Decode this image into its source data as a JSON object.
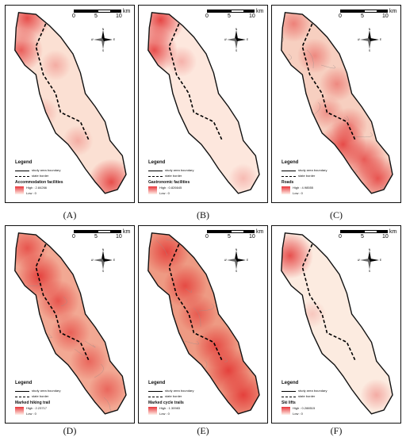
{
  "scale": {
    "labels": [
      "0",
      "5",
      "10"
    ],
    "unit": "km"
  },
  "compass": {
    "n": "N",
    "s": "S",
    "e": "E",
    "w": "W"
  },
  "legend": {
    "title": "Legend",
    "boundary": "study area boundary",
    "border": "state border",
    "low": "Low : 0"
  },
  "colors": {
    "fill_base": "#fbe3d8",
    "hot": "#e22b2b",
    "road": "#9a8f8c",
    "outline": "#111111"
  },
  "panels": [
    {
      "caption": "(A)",
      "layer_title": "Accommodation facilities",
      "high": "High : 2.84266",
      "hotspots": [
        [
          0.15,
          0.05,
          0.85
        ],
        [
          0.1,
          0.22,
          0.75
        ],
        [
          0.38,
          0.3,
          0.3
        ],
        [
          0.28,
          0.55,
          0.25
        ],
        [
          0.56,
          0.7,
          0.3
        ],
        [
          0.83,
          0.92,
          0.85
        ]
      ],
      "roads": false,
      "base": "#fbe0d3"
    },
    {
      "caption": "(B)",
      "layer_title": "Gastronomic facilities",
      "high": "High : 0.826645",
      "hotspots": [
        [
          0.15,
          0.06,
          0.9
        ],
        [
          0.1,
          0.22,
          0.85
        ],
        [
          0.32,
          0.28,
          0.3
        ],
        [
          0.82,
          0.9,
          0.25
        ]
      ],
      "roads": false,
      "base": "#fde7dd"
    },
    {
      "caption": "(C)",
      "layer_title": "Roads",
      "high": "High : 4.98555",
      "hotspots": [
        [
          0.15,
          0.08,
          0.5
        ],
        [
          0.32,
          0.25,
          0.45
        ],
        [
          0.5,
          0.4,
          0.45
        ],
        [
          0.42,
          0.55,
          0.4
        ],
        [
          0.6,
          0.62,
          0.5
        ],
        [
          0.55,
          0.72,
          0.85
        ],
        [
          0.72,
          0.8,
          0.75
        ],
        [
          0.83,
          0.9,
          0.8
        ]
      ],
      "roads": true,
      "base": "#f7cfc0"
    },
    {
      "caption": "(D)",
      "layer_title": "Marked hiking trail",
      "high": "High : 2.23717",
      "hotspots": [
        [
          0.15,
          0.1,
          0.7
        ],
        [
          0.25,
          0.25,
          0.85
        ],
        [
          0.4,
          0.38,
          0.7
        ],
        [
          0.5,
          0.55,
          0.6
        ],
        [
          0.65,
          0.7,
          0.55
        ],
        [
          0.8,
          0.85,
          0.55
        ]
      ],
      "roads": true,
      "base": "#f2a893"
    },
    {
      "caption": "(E)",
      "layer_title": "Marked cycle trails",
      "high": "High : 1.30983",
      "hotspots": [
        [
          0.2,
          0.12,
          0.8
        ],
        [
          0.35,
          0.3,
          0.75
        ],
        [
          0.45,
          0.45,
          0.6
        ],
        [
          0.6,
          0.62,
          0.75
        ],
        [
          0.7,
          0.75,
          0.85
        ],
        [
          0.82,
          0.88,
          0.85
        ]
      ],
      "roads": true,
      "base": "#ee9a83"
    },
    {
      "caption": "(F)",
      "layer_title": "Ski lifts",
      "high": "High : 0.288515",
      "hotspots": [
        [
          0.12,
          0.14,
          0.85
        ],
        [
          0.3,
          0.45,
          0.2
        ],
        [
          0.82,
          0.88,
          0.35
        ]
      ],
      "roads": false,
      "base": "#fcebe0"
    }
  ]
}
